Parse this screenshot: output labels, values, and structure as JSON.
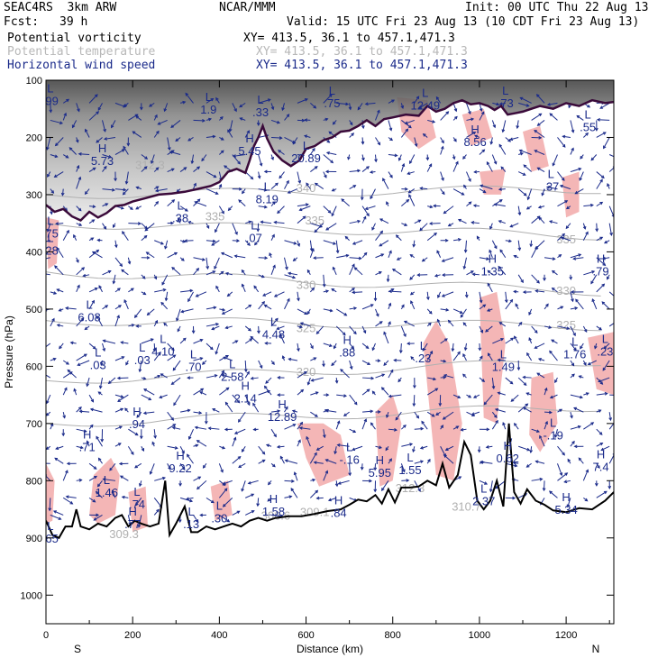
{
  "header": {
    "model": "SEAC4RS  3km ARW",
    "org": "NCAR/MMM",
    "init": "Init: 00 UTC Thu 22 Aug 13",
    "fcst_label": "Fcst:",
    "fcst_value": "39 h",
    "valid": "Valid: 15 UTC Fri 23 Aug 13 (10 CDT Fri 23 Aug 13)",
    "fields": [
      {
        "name": "Potential vorticity",
        "xy": "XY= 413.5, 36.1 to 457.1,471.3"
      },
      {
        "name": "Potential temperature",
        "xy": "XY= 413.5, 36.1 to 457.1,471.3"
      },
      {
        "name": "Horizontal wind speed",
        "xy": "XY= 413.5, 36.1 to 457.1,471.3"
      }
    ]
  },
  "colors": {
    "pv_shade": "#808080",
    "positive_area": "#f4b6b6",
    "theta": "#b0b0b0",
    "wind": "#1a2a8a",
    "terrain": "#000000",
    "tropopause": "#3a0a3a"
  },
  "chart_data": {
    "type": "cross-section",
    "xlabel": "Distance (km)",
    "ylabel": "Pressure (hPa)",
    "xlim": [
      0,
      1310
    ],
    "ylim": [
      1050,
      100
    ],
    "x_ticks": [
      0,
      200,
      400,
      600,
      800,
      1000,
      1200
    ],
    "y_ticks": [
      100,
      200,
      300,
      400,
      500,
      600,
      700,
      800,
      900,
      1000
    ],
    "x_end_labels": {
      "left": "S",
      "right": "N"
    },
    "theta_contours": [
      {
        "label": "340",
        "x": 600,
        "p": 295
      },
      {
        "label": "335",
        "x": 390,
        "p": 345
      },
      {
        "label": "335",
        "x": 620,
        "p": 352
      },
      {
        "label": "335",
        "x": 1200,
        "p": 385
      },
      {
        "label": "330",
        "x": 600,
        "p": 465
      },
      {
        "label": "330",
        "x": 1200,
        "p": 475
      },
      {
        "label": "325",
        "x": 600,
        "p": 540
      },
      {
        "label": "325",
        "x": 1200,
        "p": 535
      },
      {
        "label": "320",
        "x": 600,
        "p": 617
      },
      {
        "label": "312.3",
        "x": 840,
        "p": 820
      },
      {
        "label": "309.3",
        "x": 180,
        "p": 900
      },
      {
        "label": "306.6",
        "x": 530,
        "p": 868
      },
      {
        "label": "309.1",
        "x": 620,
        "p": 862
      },
      {
        "label": "310.7",
        "x": 970,
        "p": 852
      },
      {
        "label": "312.3",
        "x": 240,
        "p": 255
      }
    ],
    "extrema": [
      {
        "type": "H",
        "value": "5.73",
        "x": 130,
        "p": 245
      },
      {
        "type": "H",
        "value": "5.45",
        "x": 470,
        "p": 228
      },
      {
        "type": "L",
        "value": "20.89",
        "x": 600,
        "p": 240
      },
      {
        "type": "L",
        "value": "8.19",
        "x": 510,
        "p": 312
      },
      {
        "type": "L",
        "value": ".38",
        "x": 310,
        "p": 345
      },
      {
        "type": "L",
        "value": ".07",
        "x": 480,
        "p": 380
      },
      {
        "type": "L",
        "value": ".75",
        "x": 10,
        "p": 372
      },
      {
        "type": "L",
        "value": ".28",
        "x": 10,
        "p": 402
      },
      {
        "type": "H",
        "value": "8.56",
        "x": 990,
        "p": 212
      },
      {
        "type": "L",
        "value": ".37",
        "x": 1165,
        "p": 290
      },
      {
        "type": "L",
        "value": ".55",
        "x": 1250,
        "p": 186
      },
      {
        "type": "L",
        "value": ".73",
        "x": 1060,
        "p": 144
      },
      {
        "type": "L",
        "value": "12.49",
        "x": 875,
        "p": 148
      },
      {
        "type": "L",
        "value": ".75",
        "x": 660,
        "p": 144
      },
      {
        "type": "H",
        "value": "1.35",
        "x": 1030,
        "p": 438
      },
      {
        "type": "H",
        "value": ".79",
        "x": 1280,
        "p": 438
      },
      {
        "type": "L",
        "value": "6.08",
        "x": 100,
        "p": 518
      },
      {
        "type": "L",
        "value": "4.48",
        "x": 525,
        "p": 548
      },
      {
        "type": "H",
        "value": ".88",
        "x": 695,
        "p": 580
      },
      {
        "type": "L",
        "value": ".23",
        "x": 870,
        "p": 590
      },
      {
        "type": "L",
        "value": ".03",
        "x": 120,
        "p": 602
      },
      {
        "type": "L",
        "value": ".03",
        "x": 222,
        "p": 593
      },
      {
        "type": "L",
        "value": "4.10",
        "x": 270,
        "p": 578
      },
      {
        "type": "L",
        "value": ".70",
        "x": 340,
        "p": 605
      },
      {
        "type": "L",
        "value": "2.58",
        "x": 430,
        "p": 622
      },
      {
        "type": "H",
        "value": "2.14",
        "x": 460,
        "p": 660
      },
      {
        "type": "L",
        "value": "1.49",
        "x": 1055,
        "p": 605
      },
      {
        "type": "L",
        "value": "1.76",
        "x": 1220,
        "p": 583
      },
      {
        "type": "L",
        "value": ".23",
        "x": 1290,
        "p": 578
      },
      {
        "type": "H",
        "value": "12.89",
        "x": 545,
        "p": 692
      },
      {
        "type": "H",
        "value": ".94",
        "x": 210,
        "p": 705
      },
      {
        "type": "H",
        "value": ".71",
        "x": 95,
        "p": 745
      },
      {
        "type": "H",
        "value": "9.22",
        "x": 310,
        "p": 782
      },
      {
        "type": "L",
        "value": "-.16",
        "x": 700,
        "p": 767
      },
      {
        "type": "H",
        "value": "5.95",
        "x": 770,
        "p": 790
      },
      {
        "type": "L",
        "value": "1.55",
        "x": 840,
        "p": 785
      },
      {
        "type": "H",
        "value": "0.62",
        "x": 1065,
        "p": 765
      },
      {
        "type": "L",
        "value": "-.19",
        "x": 1170,
        "p": 725
      },
      {
        "type": "H",
        "value": "7.4",
        "x": 1280,
        "p": 780
      },
      {
        "type": "L",
        "value": "1.46",
        "x": 140,
        "p": 825
      },
      {
        "type": "L",
        "value": ".74",
        "x": 210,
        "p": 845
      },
      {
        "type": "L",
        "value": ".30",
        "x": 400,
        "p": 870
      },
      {
        "type": "H",
        "value": "1.58",
        "x": 525,
        "p": 858
      },
      {
        "type": "H",
        "value": ".84",
        "x": 675,
        "p": 860
      },
      {
        "type": "L",
        "value": "2.37",
        "x": 1010,
        "p": 840
      },
      {
        "type": "H",
        "value": "5.34",
        "x": 1200,
        "p": 855
      },
      {
        "type": "H",
        "value": ".77",
        "x": 200,
        "p": 880
      },
      {
        "type": "L",
        "value": ".65",
        "x": 10,
        "p": 905
      },
      {
        "type": "L",
        "value": ".13",
        "x": 335,
        "p": 880
      },
      {
        "type": "L",
        "value": ".99",
        "x": 10,
        "p": 140
      },
      {
        "type": "L",
        "value": "1.9",
        "x": 375,
        "p": 155
      },
      {
        "type": "L",
        "value": ".33",
        "x": 495,
        "p": 160
      }
    ],
    "terrain_profile": [
      [
        0,
        870
      ],
      [
        15,
        895
      ],
      [
        30,
        900
      ],
      [
        45,
        880
      ],
      [
        60,
        880
      ],
      [
        70,
        850
      ],
      [
        80,
        880
      ],
      [
        100,
        885
      ],
      [
        120,
        875
      ],
      [
        140,
        880
      ],
      [
        160,
        865
      ],
      [
        175,
        860
      ],
      [
        190,
        880
      ],
      [
        205,
        870
      ],
      [
        220,
        875
      ],
      [
        240,
        880
      ],
      [
        260,
        875
      ],
      [
        275,
        800
      ],
      [
        285,
        895
      ],
      [
        300,
        875
      ],
      [
        320,
        845
      ],
      [
        335,
        890
      ],
      [
        350,
        890
      ],
      [
        370,
        880
      ],
      [
        390,
        885
      ],
      [
        410,
        880
      ],
      [
        430,
        875
      ],
      [
        450,
        880
      ],
      [
        470,
        870
      ],
      [
        490,
        865
      ],
      [
        510,
        870
      ],
      [
        530,
        865
      ],
      [
        560,
        862
      ],
      [
        590,
        862
      ],
      [
        620,
        858
      ],
      [
        650,
        853
      ],
      [
        680,
        850
      ],
      [
        700,
        842
      ],
      [
        720,
        833
      ],
      [
        740,
        836
      ],
      [
        760,
        825
      ],
      [
        775,
        840
      ],
      [
        790,
        815
      ],
      [
        805,
        838
      ],
      [
        820,
        812
      ],
      [
        840,
        812
      ],
      [
        860,
        810
      ],
      [
        880,
        800
      ],
      [
        900,
        808
      ],
      [
        915,
        770
      ],
      [
        930,
        812
      ],
      [
        950,
        790
      ],
      [
        965,
        732
      ],
      [
        980,
        755
      ],
      [
        995,
        835
      ],
      [
        1010,
        850
      ],
      [
        1025,
        835
      ],
      [
        1040,
        800
      ],
      [
        1055,
        845
      ],
      [
        1068,
        700
      ],
      [
        1080,
        820
      ],
      [
        1095,
        840
      ],
      [
        1110,
        815
      ],
      [
        1130,
        835
      ],
      [
        1150,
        842
      ],
      [
        1170,
        852
      ],
      [
        1200,
        855
      ],
      [
        1230,
        848
      ],
      [
        1260,
        850
      ],
      [
        1290,
        835
      ],
      [
        1310,
        820
      ]
    ],
    "tropopause_2pvu": [
      [
        0,
        318
      ],
      [
        20,
        330
      ],
      [
        40,
        325
      ],
      [
        60,
        338
      ],
      [
        80,
        345
      ],
      [
        100,
        330
      ],
      [
        120,
        340
      ],
      [
        140,
        332
      ],
      [
        160,
        320
      ],
      [
        180,
        318
      ],
      [
        200,
        312
      ],
      [
        230,
        306
      ],
      [
        260,
        300
      ],
      [
        290,
        298
      ],
      [
        320,
        295
      ],
      [
        350,
        290
      ],
      [
        380,
        285
      ],
      [
        400,
        278
      ],
      [
        420,
        260
      ],
      [
        440,
        255
      ],
      [
        460,
        262
      ],
      [
        470,
        240
      ],
      [
        480,
        215
      ],
      [
        490,
        200
      ],
      [
        500,
        180
      ],
      [
        510,
        202
      ],
      [
        525,
        225
      ],
      [
        545,
        240
      ],
      [
        565,
        250
      ],
      [
        585,
        240
      ],
      [
        600,
        220
      ],
      [
        620,
        215
      ],
      [
        640,
        205
      ],
      [
        660,
        200
      ],
      [
        680,
        190
      ],
      [
        700,
        188
      ],
      [
        720,
        180
      ],
      [
        740,
        170
      ],
      [
        760,
        180
      ],
      [
        780,
        168
      ],
      [
        800,
        165
      ],
      [
        830,
        160
      ],
      [
        860,
        162
      ],
      [
        880,
        145
      ],
      [
        900,
        155
      ],
      [
        920,
        150
      ],
      [
        940,
        140
      ],
      [
        960,
        135
      ],
      [
        980,
        142
      ],
      [
        1000,
        140
      ],
      [
        1020,
        145
      ],
      [
        1035,
        152
      ],
      [
        1050,
        145
      ],
      [
        1065,
        160
      ],
      [
        1080,
        158
      ],
      [
        1100,
        155
      ],
      [
        1120,
        150
      ],
      [
        1140,
        145
      ],
      [
        1170,
        150
      ],
      [
        1200,
        140
      ],
      [
        1230,
        145
      ],
      [
        1260,
        135
      ],
      [
        1290,
        140
      ],
      [
        1310,
        138
      ]
    ],
    "positive_regions": [
      [
        [
          0,
          340
        ],
        [
          30,
          345
        ],
        [
          25,
          420
        ],
        [
          5,
          430
        ]
      ],
      [
        [
          0,
          770
        ],
        [
          20,
          800
        ],
        [
          15,
          870
        ],
        [
          0,
          875
        ]
      ],
      [
        [
          110,
          790
        ],
        [
          150,
          760
        ],
        [
          170,
          790
        ],
        [
          160,
          860
        ],
        [
          120,
          875
        ],
        [
          100,
          860
        ]
      ],
      [
        [
          190,
          820
        ],
        [
          230,
          810
        ],
        [
          235,
          880
        ],
        [
          200,
          890
        ]
      ],
      [
        [
          380,
          810
        ],
        [
          420,
          800
        ],
        [
          430,
          860
        ],
        [
          390,
          870
        ]
      ],
      [
        [
          580,
          700
        ],
        [
          640,
          700
        ],
        [
          680,
          720
        ],
        [
          700,
          790
        ],
        [
          630,
          810
        ],
        [
          600,
          760
        ]
      ],
      [
        [
          760,
          680
        ],
        [
          800,
          650
        ],
        [
          820,
          700
        ],
        [
          800,
          800
        ],
        [
          770,
          810
        ]
      ],
      [
        [
          870,
          560
        ],
        [
          900,
          520
        ],
        [
          930,
          560
        ],
        [
          960,
          700
        ],
        [
          940,
          800
        ],
        [
          900,
          790
        ]
      ],
      [
        [
          1000,
          480
        ],
        [
          1040,
          470
        ],
        [
          1060,
          560
        ],
        [
          1040,
          700
        ],
        [
          1010,
          690
        ]
      ],
      [
        [
          1120,
          620
        ],
        [
          1170,
          610
        ],
        [
          1180,
          700
        ],
        [
          1140,
          750
        ],
        [
          1115,
          720
        ]
      ],
      [
        [
          1250,
          550
        ],
        [
          1310,
          540
        ],
        [
          1310,
          650
        ],
        [
          1270,
          640
        ]
      ],
      [
        [
          810,
          130
        ],
        [
          880,
          135
        ],
        [
          900,
          200
        ],
        [
          860,
          220
        ],
        [
          820,
          190
        ]
      ],
      [
        [
          960,
          160
        ],
        [
          1010,
          150
        ],
        [
          1030,
          200
        ],
        [
          980,
          215
        ]
      ],
      [
        [
          1100,
          190
        ],
        [
          1140,
          180
        ],
        [
          1160,
          250
        ],
        [
          1120,
          260
        ]
      ],
      [
        [
          1190,
          270
        ],
        [
          1230,
          260
        ],
        [
          1230,
          330
        ],
        [
          1200,
          340
        ]
      ],
      [
        [
          1000,
          260
        ],
        [
          1060,
          255
        ],
        [
          1050,
          300
        ],
        [
          1010,
          300
        ]
      ]
    ]
  }
}
